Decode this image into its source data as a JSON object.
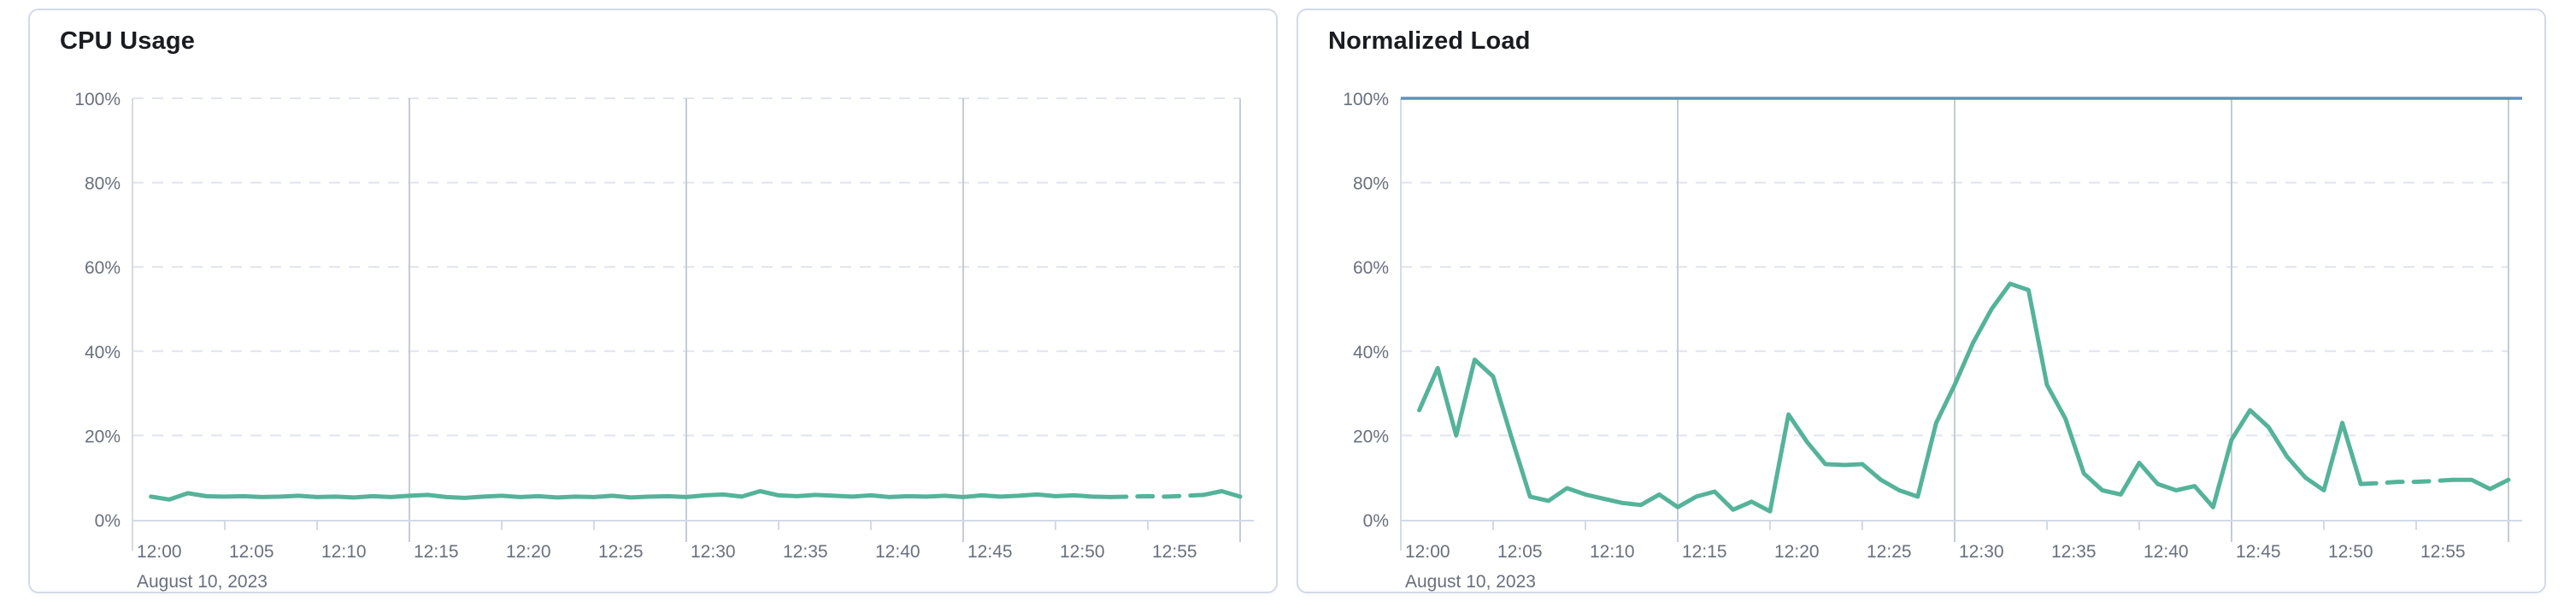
{
  "accent_colors": {
    "series_green": "#54b399",
    "limit_blue": "#6092c0",
    "axis_text": "#69707d",
    "title_text": "#1a1c21",
    "grid_dashed": "#e0e4ee",
    "grid_major_vertical": "#c6cbd4",
    "grid_edge_vertical": "#d6dae3",
    "axis_line": "#d3dae6",
    "panel_border": "#d3dae6"
  },
  "panels": [
    {
      "title": "CPU Usage"
    },
    {
      "title": "Normalized Load"
    }
  ],
  "chart_data": [
    {
      "type": "line",
      "title": "CPU Usage",
      "xlabel": "",
      "ylabel": "",
      "x_range": [
        "12:00",
        "13:00"
      ],
      "x_tick_labels": [
        "12:00",
        "12:05",
        "12:10",
        "12:15",
        "12:20",
        "12:25",
        "12:30",
        "12:35",
        "12:40",
        "12:45",
        "12:50",
        "12:55"
      ],
      "x_date_label": "August 10, 2023",
      "y_tick_labels": [
        "0%",
        "20%",
        "40%",
        "60%",
        "80%",
        "100%"
      ],
      "y_tick_values": [
        0,
        20,
        40,
        60,
        80,
        100
      ],
      "ylim": [
        0,
        100
      ],
      "grid": {
        "horizontal_dashed_at": [
          20,
          40,
          60,
          80,
          100
        ],
        "vertical_major_minutes": [
          15,
          30,
          45,
          60
        ],
        "legend": "none"
      },
      "series": [
        {
          "name": "cpu-usage",
          "color": "#54b399",
          "unit": "%",
          "interval_minutes": 1,
          "dashed_segment": [
            52,
            57
          ],
          "values": [
            5.5,
            4.8,
            6.3,
            5.6,
            5.5,
            5.6,
            5.4,
            5.5,
            5.7,
            5.4,
            5.5,
            5.3,
            5.6,
            5.4,
            5.7,
            5.9,
            5.4,
            5.2,
            5.5,
            5.7,
            5.4,
            5.6,
            5.3,
            5.5,
            5.4,
            5.7,
            5.3,
            5.5,
            5.6,
            5.4,
            5.8,
            6.0,
            5.5,
            6.8,
            5.8,
            5.6,
            5.9,
            5.7,
            5.5,
            5.8,
            5.4,
            5.6,
            5.5,
            5.7,
            5.4,
            5.8,
            5.5,
            5.7,
            6.0,
            5.6,
            5.8,
            5.5,
            5.4,
            5.5,
            5.6,
            5.5,
            5.7,
            5.9,
            6.8,
            5.5
          ]
        }
      ]
    },
    {
      "type": "line",
      "title": "Normalized Load",
      "xlabel": "",
      "ylabel": "",
      "x_range": [
        "12:00",
        "13:00"
      ],
      "x_tick_labels": [
        "12:00",
        "12:05",
        "12:10",
        "12:15",
        "12:20",
        "12:25",
        "12:30",
        "12:35",
        "12:40",
        "12:45",
        "12:50",
        "12:55"
      ],
      "x_date_label": "August 10, 2023",
      "y_tick_labels": [
        "0%",
        "20%",
        "40%",
        "60%",
        "80%",
        "100%"
      ],
      "y_tick_values": [
        0,
        20,
        40,
        60,
        80,
        100
      ],
      "ylim": [
        0,
        100
      ],
      "grid": {
        "horizontal_dashed_at": [
          20,
          40,
          60,
          80,
          100
        ],
        "vertical_major_minutes": [
          15,
          30,
          45,
          60
        ],
        "legend": "none"
      },
      "series": [
        {
          "name": "normalized-load",
          "color": "#54b399",
          "unit": "%",
          "interval_minutes": 1,
          "dashed_segment": [
            51,
            56
          ],
          "values": [
            26,
            36,
            20,
            38,
            34,
            19.5,
            5.5,
            4.5,
            7.5,
            6,
            5,
            4,
            3.5,
            6,
            3,
            5.5,
            6.7,
            2.4,
            4.3,
            2,
            25,
            18.5,
            13.2,
            13,
            13.2,
            9.5,
            7,
            5.5,
            23,
            32,
            42,
            50,
            56,
            54.5,
            32,
            24,
            11,
            7,
            6,
            13.5,
            8.5,
            7,
            8,
            3,
            19,
            26,
            22,
            15,
            10,
            7,
            23,
            8.5,
            8.7,
            9,
            9,
            9.2,
            9.5,
            9.5,
            7.3,
            9.5
          ]
        },
        {
          "name": "limit-100-percent",
          "color": "#6092c0",
          "unit": "%",
          "constant": 100
        }
      ]
    }
  ]
}
